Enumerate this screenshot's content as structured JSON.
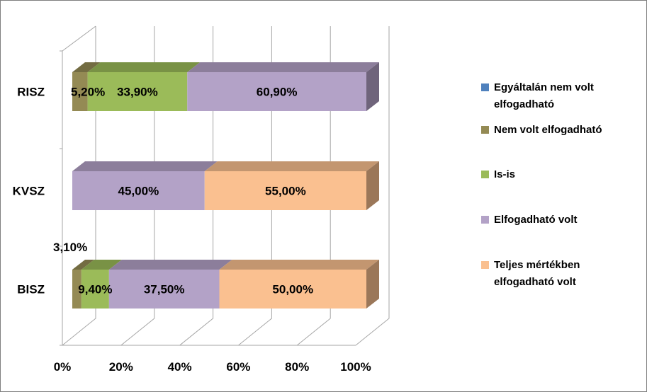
{
  "chart_data": {
    "type": "bar",
    "orientation": "horizontal",
    "stacked": "percent",
    "three_d": true,
    "categories": [
      "RISZ",
      "KVSZ",
      "BISZ"
    ],
    "series": [
      {
        "name": "Egyáltalán nem volt elfogadható",
        "values": [
          0,
          0,
          0
        ],
        "color": "#4f81bd"
      },
      {
        "name": "Nem volt elfogadható",
        "values": [
          5.2,
          0,
          3.1
        ],
        "color": "#948a54"
      },
      {
        "name": "Is-is",
        "values": [
          33.9,
          0,
          9.4
        ],
        "color": "#9bbb59"
      },
      {
        "name": "Elfogadható volt",
        "values": [
          60.9,
          45.0,
          37.5
        ],
        "color": "#b3a2c7"
      },
      {
        "name": "Teljes mértékben elfogadható volt",
        "values": [
          0,
          55.0,
          50.0
        ],
        "color": "#fac090"
      }
    ],
    "data_labels": [
      {
        "category": "RISZ",
        "series": "Nem volt elfogadható",
        "text": "5,20%"
      },
      {
        "category": "RISZ",
        "series": "Is-is",
        "text": "33,90%"
      },
      {
        "category": "RISZ",
        "series": "Elfogadható volt",
        "text": "60,90%"
      },
      {
        "category": "KVSZ",
        "series": "Elfogadható volt",
        "text": "45,00%"
      },
      {
        "category": "KVSZ",
        "series": "Teljes mértékben elfogadható volt",
        "text": "55,00%"
      },
      {
        "category": "BISZ",
        "series": "Nem volt elfogadható",
        "text": "3,10%",
        "placement": "above"
      },
      {
        "category": "BISZ",
        "series": "Is-is",
        "text": "9,40%"
      },
      {
        "category": "BISZ",
        "series": "Elfogadható volt",
        "text": "37,50%"
      },
      {
        "category": "BISZ",
        "series": "Teljes mértékben elfogadható volt",
        "text": "50,00%"
      }
    ],
    "x_ticks": [
      "0%",
      "20%",
      "40%",
      "60%",
      "80%",
      "100%"
    ],
    "xlim": [
      0,
      100
    ],
    "grid": true,
    "legend": {
      "position": "right",
      "entries": [
        [
          "Egyáltalán nem volt",
          "elfogadható"
        ],
        [
          "Nem volt elfogadható"
        ],
        [
          "Is-is"
        ],
        [
          "Elfogadható volt"
        ],
        [
          "Teljes mértékben",
          "elfogadható volt"
        ]
      ]
    }
  }
}
